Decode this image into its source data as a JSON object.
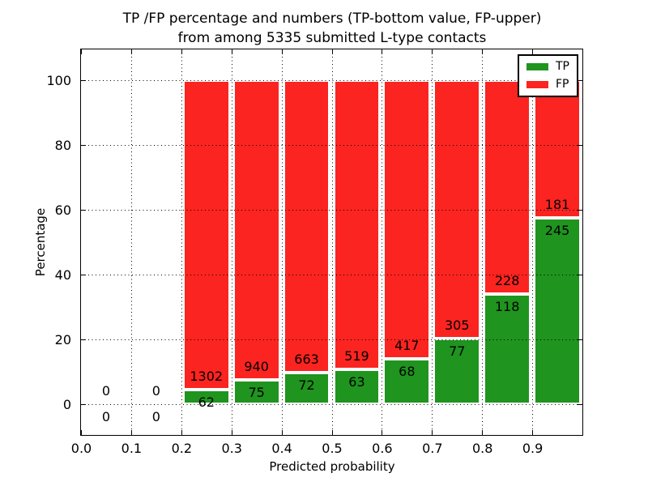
{
  "chart_data": {
    "type": "bar",
    "subtype": "stacked-percentage",
    "title_lines": [
      "TP /FP percentage and numbers (TP-bottom value, FP-upper)",
      "from among 5335 submitted L-type contacts"
    ],
    "xlabel": "Predicted probability",
    "ylabel": "Percentage",
    "xlim": [
      0.0,
      1.0
    ],
    "ylim": [
      -10,
      110
    ],
    "x_ticks": [
      "0.0",
      "0.1",
      "0.2",
      "0.3",
      "0.4",
      "0.5",
      "0.6",
      "0.7",
      "0.8",
      "0.9"
    ],
    "y_ticks": [
      0,
      20,
      40,
      60,
      80,
      100
    ],
    "grid": "dotted",
    "colors": {
      "tp": "#1f941f",
      "fp": "#fb2420",
      "axis": "#000000",
      "background": "#ffffff"
    },
    "legend": {
      "position": "upper-right",
      "entries": [
        {
          "label": "TP",
          "color": "#1f941f"
        },
        {
          "label": "FP",
          "color": "#fb2420"
        }
      ]
    },
    "bins": [
      {
        "x_start": 0.0,
        "x_end": 0.1,
        "tp": 0,
        "fp": 0
      },
      {
        "x_start": 0.1,
        "x_end": 0.2,
        "tp": 0,
        "fp": 0
      },
      {
        "x_start": 0.2,
        "x_end": 0.3,
        "tp": 62,
        "fp": 1302
      },
      {
        "x_start": 0.3,
        "x_end": 0.4,
        "tp": 75,
        "fp": 940
      },
      {
        "x_start": 0.4,
        "x_end": 0.5,
        "tp": 72,
        "fp": 663
      },
      {
        "x_start": 0.5,
        "x_end": 0.6,
        "tp": 63,
        "fp": 519
      },
      {
        "x_start": 0.6,
        "x_end": 0.7,
        "tp": 68,
        "fp": 417
      },
      {
        "x_start": 0.7,
        "x_end": 0.8,
        "tp": 77,
        "fp": 305
      },
      {
        "x_start": 0.8,
        "x_end": 0.9,
        "tp": 118,
        "fp": 228
      },
      {
        "x_start": 0.9,
        "x_end": 1.0,
        "tp": 245,
        "fp": 181
      }
    ]
  }
}
